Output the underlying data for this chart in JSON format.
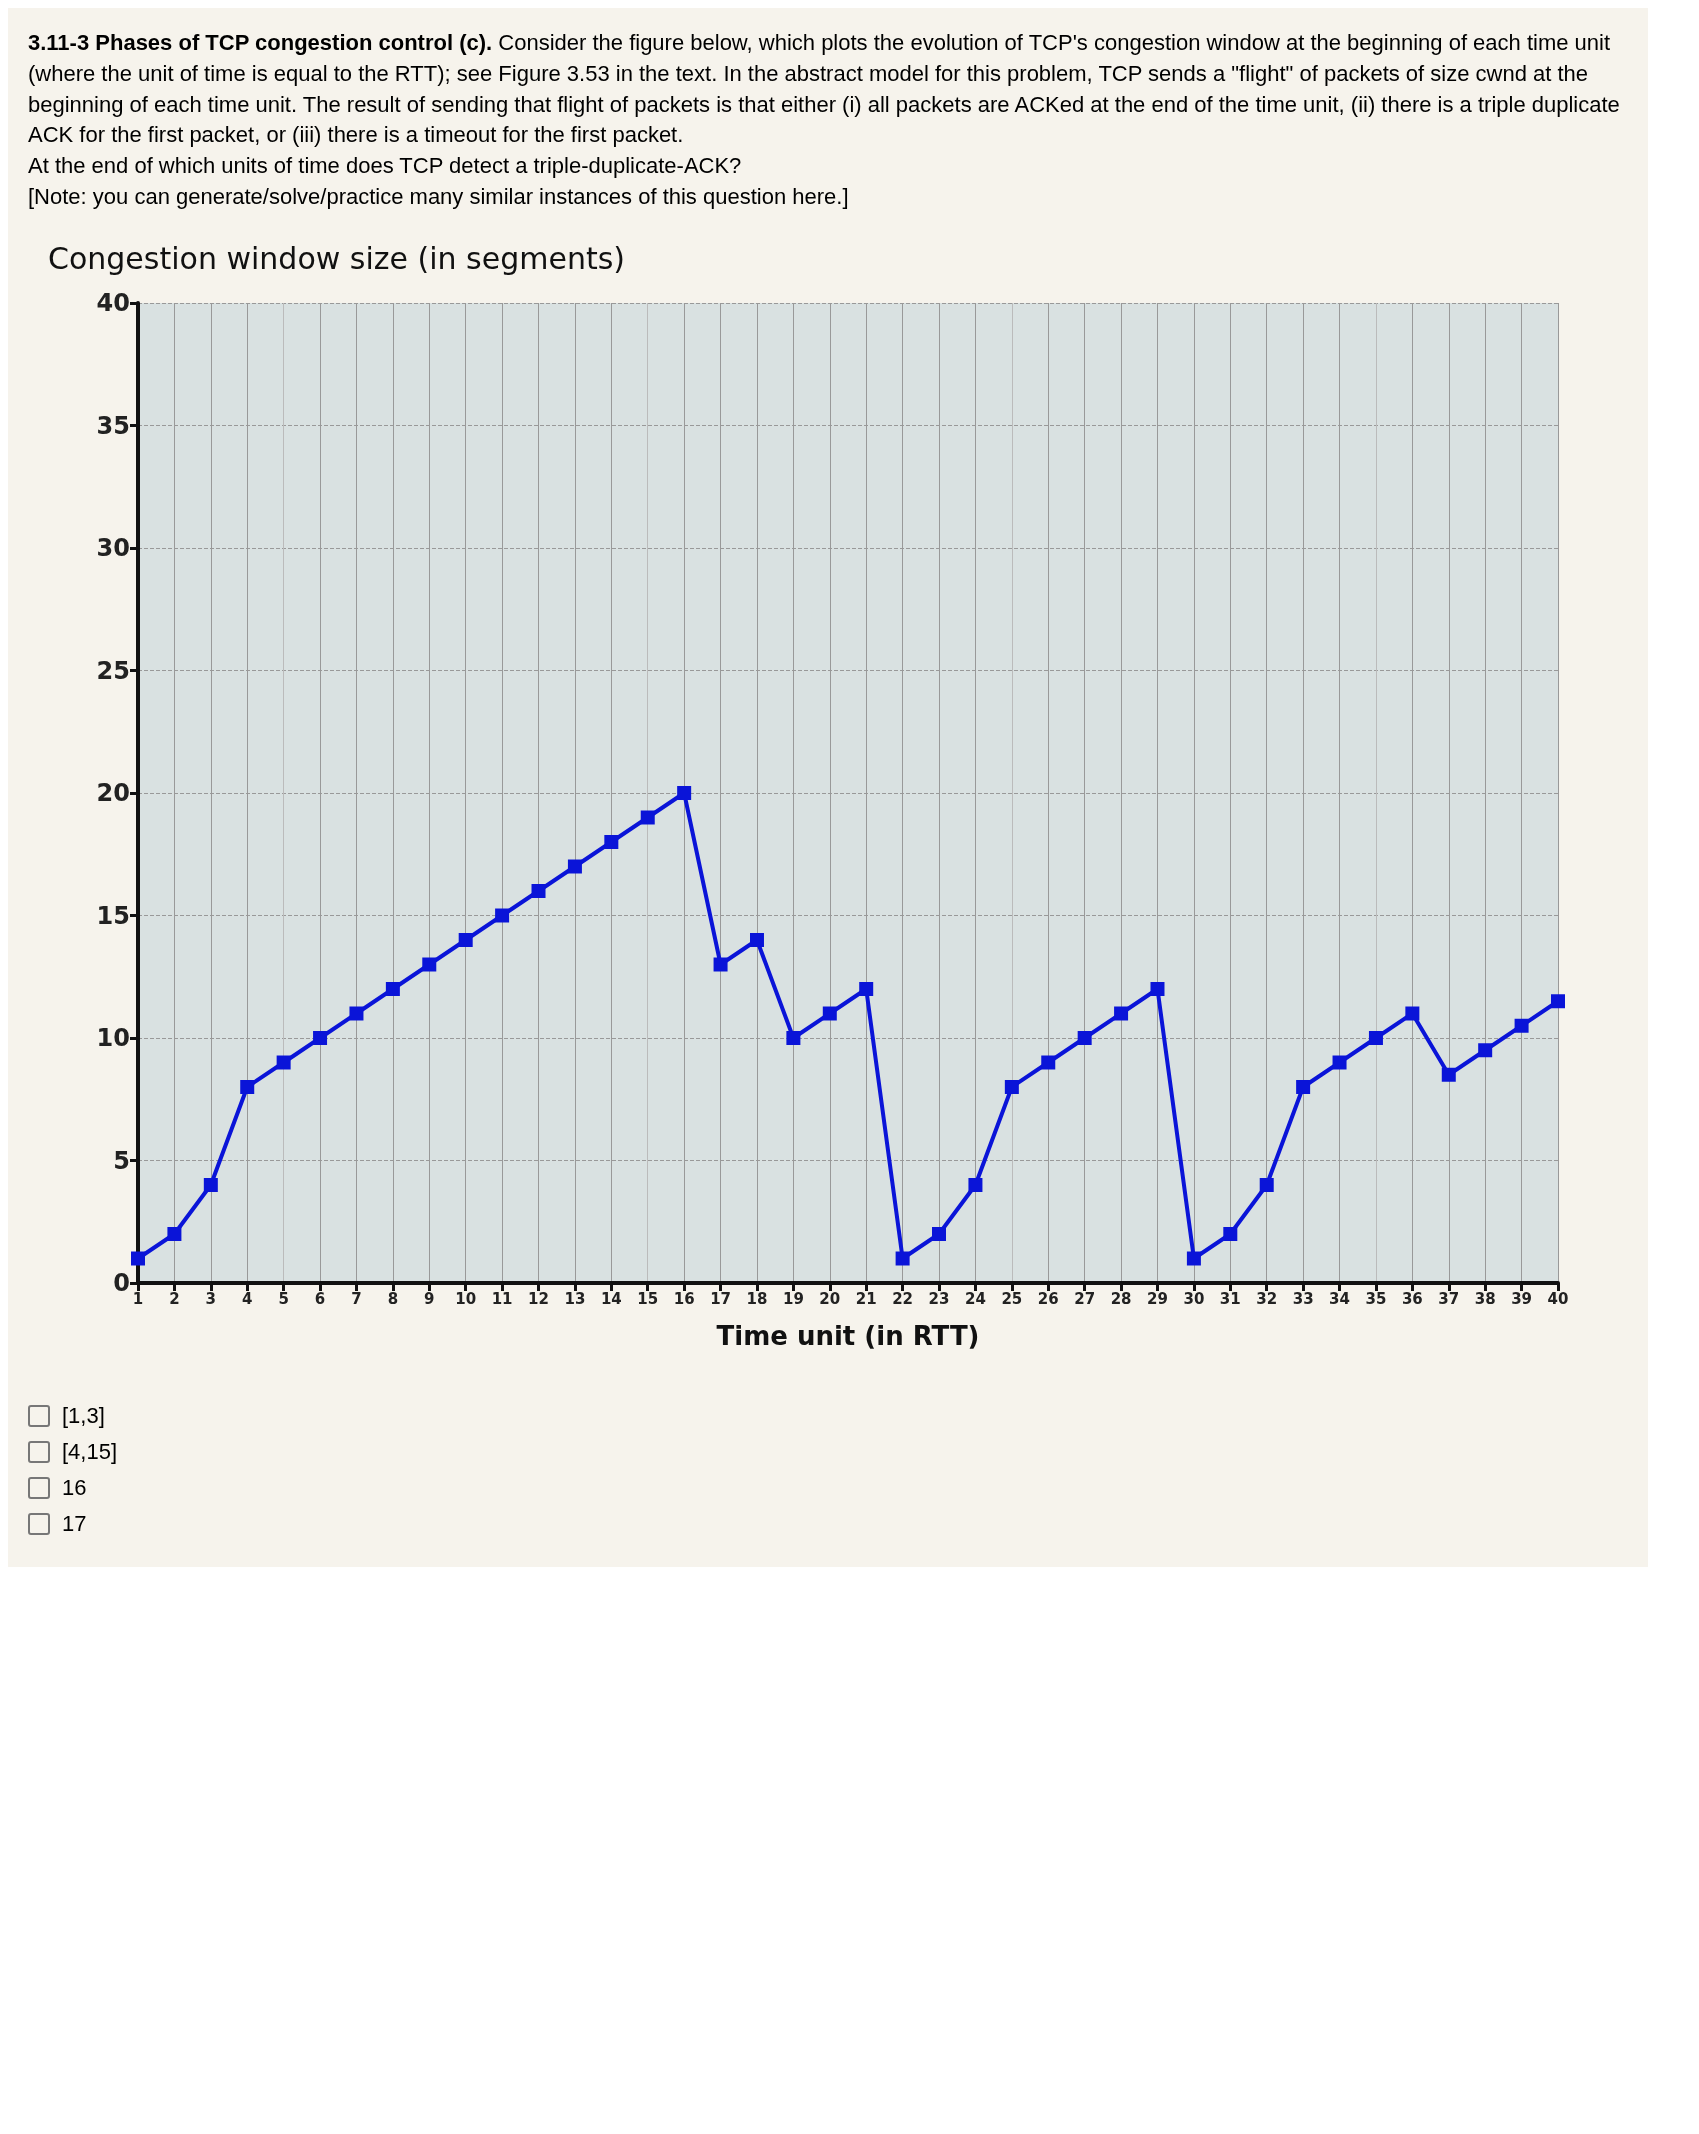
{
  "chart_data": {
    "type": "line",
    "title": "3.11-3 Phases of TCP congestion control (c).",
    "subtitle": "Consider the figure below, which plots the evolution of TCP's congestion window at the beginning of each time unit (where the unit of time is equal to the RTT); see Figure 3.53 in the text. In the abstract model for this problem, TCP sends a \"flight\" of packets of size cwnd at the beginning of each time unit. The result of sending that flight of packets is that either (i) all packets are ACKed at the end of the time unit, (ii) there is a triple duplicate ACK for the first packet, or (iii) there is a timeout for the first packet.",
    "annotations": [
      "At the end of which units of time does TCP detect a triple-duplicate-ACK?",
      "[Note: you can generate/solve/practice many similar instances of this question here.]",
      "[1,3]",
      "[4,15]",
      "16",
      "17"
    ],
    "xlabel": "Time unit (in RTT)",
    "ylabel": "Congestion window size (in segments)",
    "x": [
      1,
      2,
      3,
      4,
      5,
      6,
      7,
      8,
      9,
      10,
      11,
      12,
      13,
      14,
      15,
      16,
      17,
      18,
      19,
      20,
      21,
      22,
      23,
      24,
      25,
      26,
      27,
      28,
      29,
      30,
      31,
      32,
      33,
      34,
      35,
      36,
      37,
      38,
      39,
      40
    ],
    "series": [
      {
        "color": "#0a14d8",
        "values": [
          1,
          2,
          4,
          8,
          9,
          10,
          11,
          12,
          13,
          14,
          15,
          16,
          17,
          18,
          19,
          20,
          13,
          14,
          10,
          11,
          12,
          1,
          2,
          4,
          8,
          9,
          10,
          11,
          12,
          1,
          2,
          4,
          8,
          9,
          10,
          11,
          8.5,
          9.5,
          10.5,
          11.5
        ]
      }
    ],
    "xlim": [
      1,
      40
    ],
    "xticks": [
      1,
      2,
      3,
      4,
      5,
      6,
      7,
      8,
      9,
      10,
      11,
      12,
      13,
      14,
      15,
      16,
      17,
      18,
      19,
      20,
      21,
      22,
      23,
      24,
      25,
      26,
      27,
      28,
      29,
      30,
      31,
      32,
      33,
      34,
      35,
      36,
      37,
      38,
      39,
      40
    ],
    "ylim": [
      0,
      40
    ],
    "yticks": [
      0,
      5,
      10,
      15,
      20,
      25,
      30,
      35,
      40
    ],
    "grid": true,
    "marker": "square",
    "line_style": "solid"
  }
}
